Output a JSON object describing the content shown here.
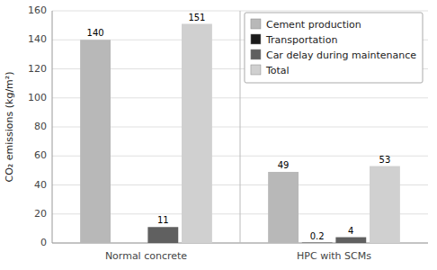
{
  "chart_data": {
    "type": "bar",
    "categories": [
      "Normal concrete",
      "HPC with SCMs"
    ],
    "series": [
      {
        "name": "Cement production",
        "color": "#b8b8b8",
        "values": [
          140,
          49
        ]
      },
      {
        "name": "Transportation",
        "color": "#1a1a1a",
        "values": [
          0,
          0.2
        ],
        "value_labels": [
          null,
          "0.2"
        ]
      },
      {
        "name": "Car delay during maintenance",
        "color": "#606060",
        "values": [
          11,
          4
        ]
      },
      {
        "name": "Total",
        "color": "#d0d0d0",
        "values": [
          151,
          53
        ]
      }
    ],
    "ylabel": "CO₂ emissions (kg/m²)",
    "ylim": [
      0,
      160
    ],
    "yticks": [
      0,
      20,
      40,
      60,
      80,
      100,
      120,
      140,
      160
    ],
    "grid": true,
    "legend": "upper right",
    "data_labels": true
  }
}
